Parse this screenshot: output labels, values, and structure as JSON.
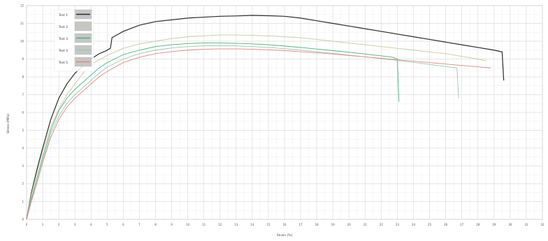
{
  "chart_data": {
    "type": "line",
    "title": "",
    "xlabel": "Strain (%)",
    "ylabel": "Stress (MPa)",
    "xlim": [
      0,
      32
    ],
    "ylim": [
      0,
      12
    ],
    "x_ticks": [
      0,
      1,
      2,
      3,
      4,
      5,
      6,
      7,
      8,
      9,
      10,
      11,
      12,
      13,
      14,
      15,
      16,
      17,
      18,
      19,
      20,
      21,
      22,
      23,
      24,
      25,
      26,
      27,
      28,
      29,
      30,
      31,
      32
    ],
    "y_ticks": [
      0,
      1,
      2,
      3,
      4,
      5,
      6,
      7,
      8,
      9,
      10,
      11,
      12
    ],
    "grid": true,
    "legend_position": "top-left",
    "series": [
      {
        "name": "Test 1",
        "color": "#2b2b2b",
        "x": [
          0,
          0.3,
          0.7,
          1.0,
          1.5,
          2.0,
          2.5,
          3.0,
          3.5,
          4.0,
          4.5,
          4.9,
          5.2,
          5.3,
          6.0,
          7.0,
          8.0,
          9.0,
          10.0,
          11.0,
          12.0,
          13.0,
          14.0,
          15.0,
          16.0,
          17.0,
          18.0,
          19.0,
          20.0,
          21.0,
          22.0,
          23.0,
          24.0,
          25.0,
          26.0,
          27.0,
          28.0,
          29.0,
          29.5,
          29.55,
          29.6
        ],
        "y": [
          0,
          1.5,
          3.0,
          4.0,
          5.6,
          6.8,
          7.6,
          8.2,
          8.6,
          9.0,
          9.3,
          9.45,
          9.6,
          10.2,
          10.55,
          10.9,
          11.1,
          11.2,
          11.3,
          11.35,
          11.4,
          11.42,
          11.45,
          11.43,
          11.4,
          11.3,
          11.15,
          11.0,
          10.85,
          10.7,
          10.55,
          10.4,
          10.25,
          10.1,
          9.95,
          9.8,
          9.65,
          9.5,
          9.4,
          8.6,
          7.8
        ]
      },
      {
        "name": "Test 2",
        "color": "#c8c8a0",
        "x": [
          0,
          0.3,
          0.7,
          1.0,
          1.5,
          2.0,
          2.5,
          3.0,
          3.5,
          4.0,
          5.0,
          6.0,
          7.0,
          8.0,
          9.0,
          10.0,
          11.0,
          12.0,
          13.0,
          14.0,
          15.0,
          16.0,
          17.0,
          18.0,
          19.0,
          20.0,
          21.0,
          22.0,
          23.0,
          24.0,
          25.0,
          26.0,
          27.0,
          28.0,
          28.5
        ],
        "y": [
          0,
          1.4,
          2.8,
          3.8,
          5.2,
          6.2,
          7.0,
          7.6,
          8.2,
          8.7,
          9.2,
          9.6,
          9.85,
          10.0,
          10.15,
          10.25,
          10.3,
          10.35,
          10.35,
          10.33,
          10.3,
          10.25,
          10.2,
          10.1,
          10.0,
          9.9,
          9.8,
          9.7,
          9.6,
          9.5,
          9.4,
          9.3,
          9.15,
          9.0,
          8.9
        ]
      },
      {
        "name": "Test 3",
        "color": "#4caf82",
        "x": [
          0,
          0.3,
          0.7,
          1.0,
          1.5,
          2.0,
          2.5,
          3.0,
          3.5,
          4.0,
          4.5,
          5.0,
          6.0,
          7.0,
          8.0,
          9.0,
          10.0,
          11.0,
          12.0,
          13.0,
          14.0,
          15.0,
          16.0,
          17.0,
          18.0,
          19.0,
          20.0,
          21.0,
          22.0,
          22.7,
          23.0,
          23.05,
          23.1
        ],
        "y": [
          0,
          1.2,
          2.5,
          3.5,
          5.0,
          6.1,
          6.8,
          7.3,
          7.7,
          8.1,
          8.5,
          8.8,
          9.25,
          9.5,
          9.7,
          9.8,
          9.87,
          9.9,
          9.9,
          9.88,
          9.85,
          9.8,
          9.73,
          9.65,
          9.56,
          9.47,
          9.38,
          9.28,
          9.18,
          9.1,
          9.0,
          7.8,
          6.6
        ]
      },
      {
        "name": "Test 4",
        "color": "#9ec7b2",
        "x": [
          0,
          0.3,
          0.7,
          1.0,
          1.5,
          2.0,
          2.5,
          3.0,
          3.5,
          4.0,
          4.5,
          5.0,
          6.0,
          7.0,
          8.0,
          9.0,
          10.0,
          11.0,
          12.0,
          13.0,
          14.0,
          15.0,
          16.0,
          17.0,
          18.0,
          19.0,
          20.0,
          21.0,
          22.0,
          23.0,
          24.0,
          25.0,
          26.0,
          26.7,
          26.75,
          26.8
        ],
        "y": [
          0,
          1.1,
          2.3,
          3.3,
          4.8,
          5.8,
          6.5,
          7.0,
          7.4,
          7.8,
          8.2,
          8.55,
          9.0,
          9.3,
          9.5,
          9.62,
          9.7,
          9.74,
          9.75,
          9.74,
          9.7,
          9.65,
          9.58,
          9.5,
          9.41,
          9.32,
          9.22,
          9.12,
          9.02,
          8.92,
          8.81,
          8.7,
          8.58,
          8.5,
          7.6,
          6.8
        ]
      },
      {
        "name": "Test 5",
        "color": "#e08a80",
        "x": [
          0,
          0.3,
          0.7,
          1.0,
          1.5,
          2.0,
          2.5,
          3.0,
          3.5,
          4.0,
          4.5,
          5.0,
          6.0,
          7.0,
          8.0,
          9.0,
          10.0,
          11.0,
          12.0,
          13.0,
          14.0,
          15.0,
          16.0,
          17.0,
          18.0,
          19.0,
          20.0,
          21.0,
          22.0,
          23.0,
          24.0,
          25.0,
          26.0,
          27.0,
          28.0,
          28.8
        ],
        "y": [
          0,
          1.0,
          2.2,
          3.2,
          4.6,
          5.6,
          6.3,
          6.8,
          7.2,
          7.6,
          8.0,
          8.3,
          8.8,
          9.1,
          9.3,
          9.42,
          9.5,
          9.55,
          9.57,
          9.57,
          9.55,
          9.52,
          9.47,
          9.41,
          9.35,
          9.28,
          9.2,
          9.12,
          9.04,
          8.96,
          8.88,
          8.8,
          8.72,
          8.64,
          8.56,
          8.5
        ]
      }
    ]
  }
}
